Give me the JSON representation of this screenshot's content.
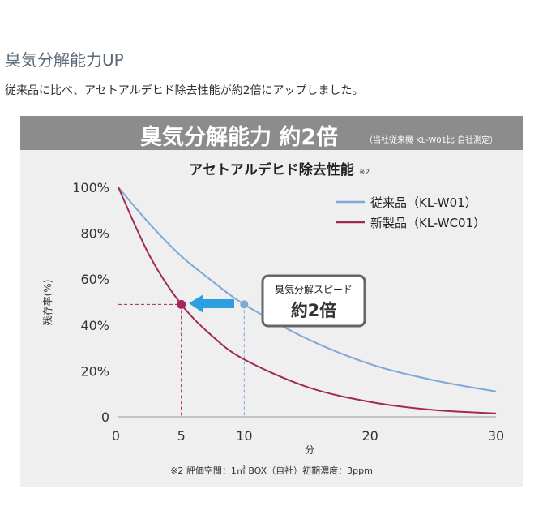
{
  "heading": "臭気分解能力UP",
  "lead": "従来品に比べ、アセトアルデヒド除去性能が約2倍にアップしました。",
  "banner": {
    "title": "臭気分解能力 約2倍",
    "note": "（当社従来機 KL-W01比 自社測定）"
  },
  "chart_data": {
    "type": "line",
    "title": "アセトアルデヒド除去性能",
    "title_note": "※2",
    "xlabel": "分",
    "ylabel": "残存率(%)",
    "xlim": [
      0,
      30
    ],
    "ylim": [
      0,
      100
    ],
    "xticks": [
      "0",
      "5",
      "10",
      "20",
      "30"
    ],
    "yticks": [
      "0",
      "20%",
      "40%",
      "60%",
      "80%",
      "100%"
    ],
    "x": [
      0,
      2.5,
      5,
      7.5,
      10,
      15,
      20,
      25,
      30
    ],
    "series": [
      {
        "name": "従来品（KL-W01）",
        "color": "#7ea8d8",
        "values": [
          100,
          84,
          70,
          59,
          49,
          34,
          23,
          16,
          11
        ]
      },
      {
        "name": "新製品（KL-WC01）",
        "color": "#a3285a",
        "values": [
          100,
          70,
          49,
          35,
          25,
          13,
          6.5,
          3,
          1.5
        ]
      }
    ],
    "legend": "top-right",
    "highlights": [
      {
        "series": 0,
        "x": 10,
        "y": 49
      },
      {
        "series": 1,
        "x": 5,
        "y": 49
      }
    ],
    "callout": {
      "line1": "臭気分解スピード",
      "line2": "約2倍"
    },
    "footnote": "※2 評価空間：1㎥ BOX（自社）初期濃度：3ppm"
  }
}
